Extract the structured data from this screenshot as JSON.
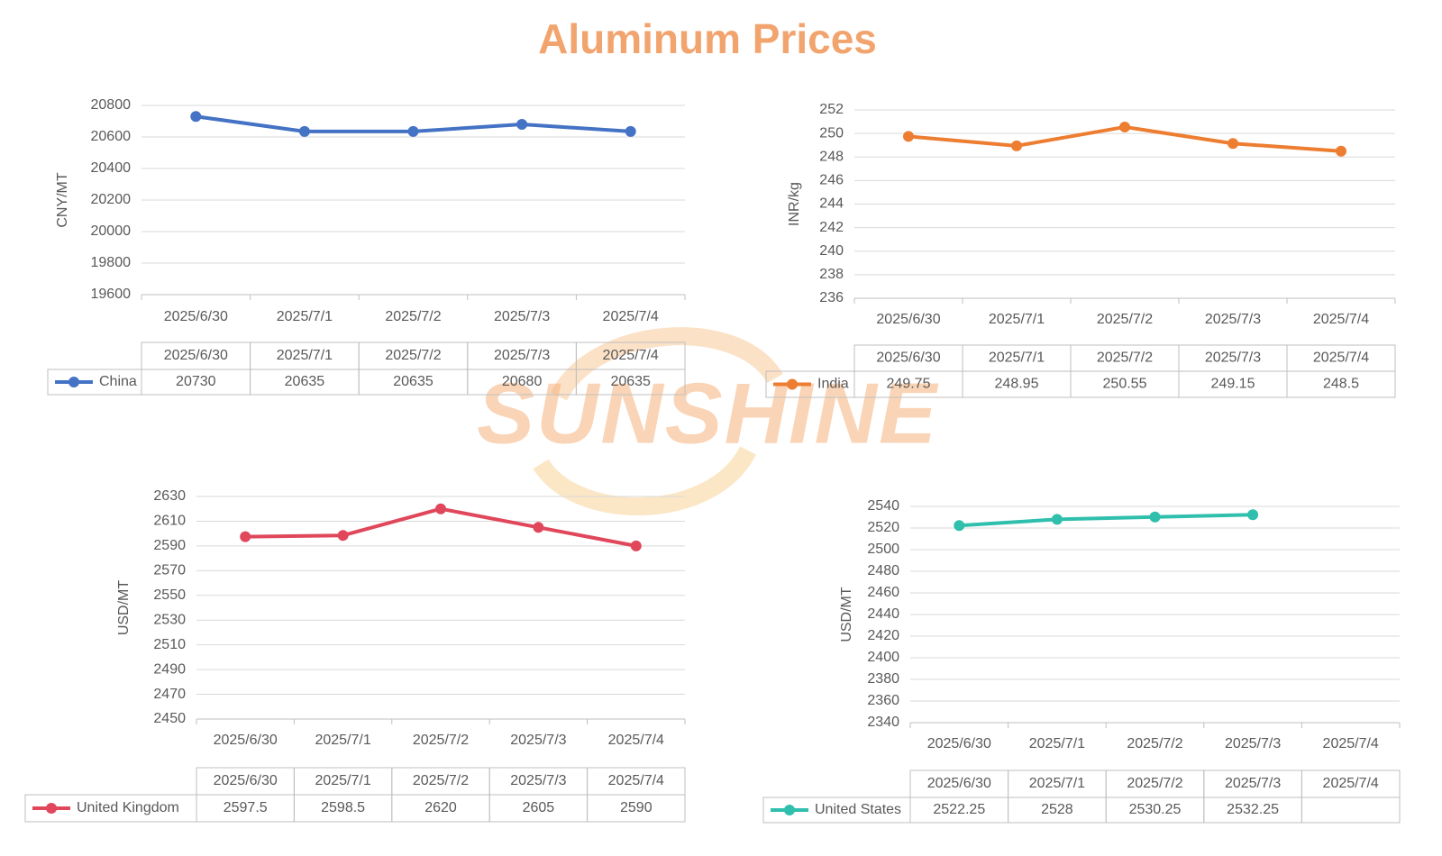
{
  "title": "Aluminum Prices",
  "watermark": "SUNSHINE",
  "chart_data": [
    {
      "type": "line",
      "y_label": "CNY/MT",
      "categories": [
        "2025/6/30",
        "2025/7/1",
        "2025/7/2",
        "2025/7/3",
        "2025/7/4"
      ],
      "series": [
        {
          "name": "China",
          "color": "#4472c4",
          "values": [
            20730,
            20635,
            20635,
            20680,
            20635
          ]
        }
      ],
      "ylim": [
        19600,
        20800
      ],
      "yticks": [
        19600,
        19800,
        20000,
        20200,
        20400,
        20600,
        20800
      ],
      "grid": true
    },
    {
      "type": "line",
      "y_label": "INR/kg",
      "categories": [
        "2025/6/30",
        "2025/7/1",
        "2025/7/2",
        "2025/7/3",
        "2025/7/4"
      ],
      "series": [
        {
          "name": "India",
          "color": "#ed7d31",
          "values": [
            249.75,
            248.95,
            250.55,
            249.15,
            248.5
          ]
        }
      ],
      "ylim": [
        236,
        252
      ],
      "yticks": [
        236,
        238,
        240,
        242,
        244,
        246,
        248,
        250,
        252
      ],
      "grid": true
    },
    {
      "type": "line",
      "y_label": "USD/MT",
      "categories": [
        "2025/6/30",
        "2025/7/1",
        "2025/7/2",
        "2025/7/3",
        "2025/7/4"
      ],
      "series": [
        {
          "name": "United Kingdom",
          "color": "#e0475b",
          "values": [
            2597.5,
            2598.5,
            2620,
            2605,
            2590
          ]
        }
      ],
      "ylim": [
        2450,
        2630
      ],
      "yticks": [
        2450,
        2470,
        2490,
        2510,
        2530,
        2550,
        2570,
        2590,
        2610,
        2630
      ],
      "grid": true
    },
    {
      "type": "line",
      "y_label": "USD/MT",
      "categories": [
        "2025/6/30",
        "2025/7/1",
        "2025/7/2",
        "2025/7/3",
        "2025/7/4"
      ],
      "series": [
        {
          "name": "United States",
          "color": "#2fbfac",
          "values": [
            2522.25,
            2528,
            2530.25,
            2532.25,
            null
          ]
        }
      ],
      "ylim": [
        2340,
        2540
      ],
      "yticks": [
        2340,
        2360,
        2380,
        2400,
        2420,
        2440,
        2460,
        2480,
        2500,
        2520,
        2540
      ],
      "grid": true
    }
  ]
}
